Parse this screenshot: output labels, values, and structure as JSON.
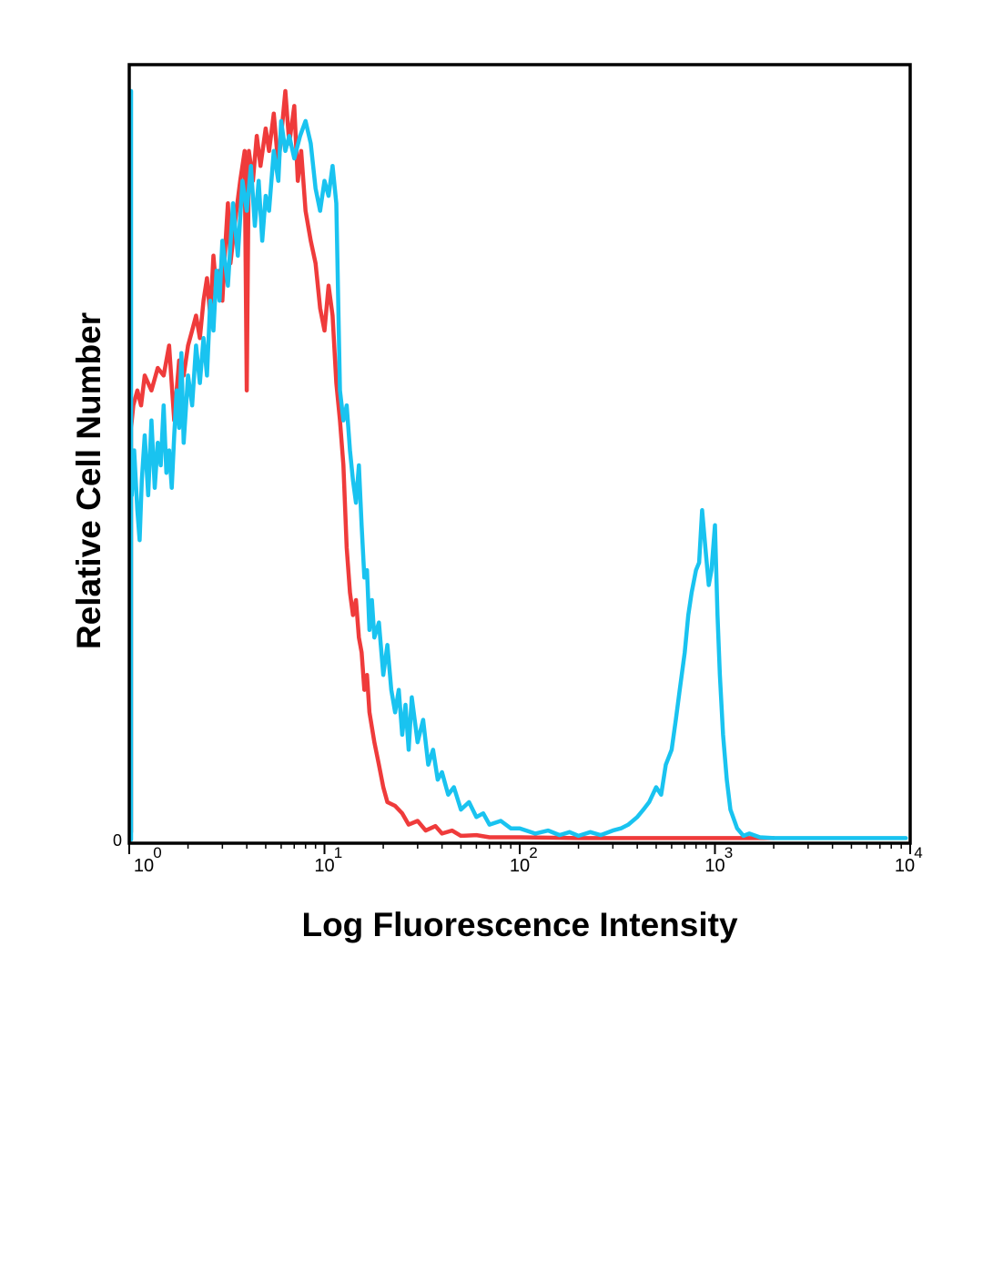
{
  "chart_data": {
    "type": "line",
    "xlabel": "Log Fluorescence Intensity",
    "ylabel": "Relative Cell Number",
    "x_scale": "log",
    "xlim": [
      1,
      10000
    ],
    "ylim": [
      0,
      1
    ],
    "grid": false,
    "legend": "none",
    "x_ticks": [
      {
        "value": 1,
        "base": "10",
        "exp": "0"
      },
      {
        "value": 10,
        "base": "10",
        "exp": "1"
      },
      {
        "value": 100,
        "base": "10",
        "exp": "2"
      },
      {
        "value": 1000,
        "base": "10",
        "exp": "3"
      },
      {
        "value": 10000,
        "base": "10",
        "exp": "4"
      }
    ],
    "y_ticks": [
      {
        "value": 0,
        "label": "0"
      }
    ],
    "series": [
      {
        "color": "#ef3b3b",
        "points": [
          [
            0.95,
            0.01
          ],
          [
            1.0,
            0.55
          ],
          [
            1.05,
            0.58
          ],
          [
            1.1,
            0.6
          ],
          [
            1.15,
            0.58
          ],
          [
            1.2,
            0.62
          ],
          [
            1.3,
            0.6
          ],
          [
            1.4,
            0.63
          ],
          [
            1.5,
            0.62
          ],
          [
            1.6,
            0.66
          ],
          [
            1.7,
            0.56
          ],
          [
            1.8,
            0.64
          ],
          [
            1.9,
            0.62
          ],
          [
            2.0,
            0.66
          ],
          [
            2.1,
            0.68
          ],
          [
            2.2,
            0.7
          ],
          [
            2.3,
            0.67
          ],
          [
            2.4,
            0.72
          ],
          [
            2.5,
            0.75
          ],
          [
            2.6,
            0.7
          ],
          [
            2.7,
            0.78
          ],
          [
            2.8,
            0.73
          ],
          [
            2.9,
            0.76
          ],
          [
            3.0,
            0.72
          ],
          [
            3.1,
            0.79
          ],
          [
            3.2,
            0.85
          ],
          [
            3.3,
            0.77
          ],
          [
            3.5,
            0.83
          ],
          [
            3.7,
            0.88
          ],
          [
            3.9,
            0.92
          ],
          [
            4.0,
            0.6
          ],
          [
            4.1,
            0.92
          ],
          [
            4.3,
            0.88
          ],
          [
            4.5,
            0.94
          ],
          [
            4.7,
            0.9
          ],
          [
            5.0,
            0.95
          ],
          [
            5.2,
            0.92
          ],
          [
            5.5,
            0.97
          ],
          [
            5.8,
            0.9
          ],
          [
            6.0,
            0.94
          ],
          [
            6.3,
            1.0
          ],
          [
            6.6,
            0.93
          ],
          [
            7.0,
            0.98
          ],
          [
            7.3,
            0.88
          ],
          [
            7.6,
            0.92
          ],
          [
            8.0,
            0.84
          ],
          [
            8.5,
            0.8
          ],
          [
            9.0,
            0.77
          ],
          [
            9.5,
            0.71
          ],
          [
            10.0,
            0.68
          ],
          [
            10.5,
            0.74
          ],
          [
            11.0,
            0.7
          ],
          [
            11.5,
            0.61
          ],
          [
            12.0,
            0.56
          ],
          [
            12.5,
            0.5
          ],
          [
            13.0,
            0.39
          ],
          [
            13.5,
            0.33
          ],
          [
            14.0,
            0.3
          ],
          [
            14.5,
            0.32
          ],
          [
            15.0,
            0.27
          ],
          [
            15.5,
            0.25
          ],
          [
            16.0,
            0.2
          ],
          [
            16.5,
            0.22
          ],
          [
            17.0,
            0.17
          ],
          [
            18.0,
            0.13
          ],
          [
            19.0,
            0.1
          ],
          [
            20.0,
            0.07
          ],
          [
            21.0,
            0.05
          ],
          [
            23.0,
            0.045
          ],
          [
            25.0,
            0.035
          ],
          [
            27.0,
            0.02
          ],
          [
            30.0,
            0.025
          ],
          [
            33.0,
            0.012
          ],
          [
            37.0,
            0.018
          ],
          [
            40.0,
            0.008
          ],
          [
            45.0,
            0.012
          ],
          [
            50.0,
            0.005
          ],
          [
            60.0,
            0.006
          ],
          [
            70.0,
            0.003
          ],
          [
            100.0,
            0.003
          ],
          [
            200.0,
            0.002
          ],
          [
            300.0,
            0.002
          ],
          [
            500.0,
            0.002
          ],
          [
            1000.0,
            0.002
          ],
          [
            1500.0,
            0.002
          ],
          [
            2000.0,
            0.002
          ]
        ]
      },
      {
        "color": "#19c3f0",
        "points": [
          [
            0.93,
            0.0
          ],
          [
            0.95,
            1.0
          ],
          [
            0.98,
            0.8
          ],
          [
            1.0,
            0.5
          ],
          [
            1.03,
            0.46
          ],
          [
            1.06,
            0.52
          ],
          [
            1.1,
            0.44
          ],
          [
            1.13,
            0.4
          ],
          [
            1.16,
            0.48
          ],
          [
            1.2,
            0.54
          ],
          [
            1.25,
            0.46
          ],
          [
            1.3,
            0.56
          ],
          [
            1.35,
            0.47
          ],
          [
            1.4,
            0.53
          ],
          [
            1.45,
            0.5
          ],
          [
            1.5,
            0.58
          ],
          [
            1.55,
            0.49
          ],
          [
            1.6,
            0.52
          ],
          [
            1.65,
            0.47
          ],
          [
            1.7,
            0.54
          ],
          [
            1.75,
            0.6
          ],
          [
            1.8,
            0.55
          ],
          [
            1.85,
            0.65
          ],
          [
            1.9,
            0.53
          ],
          [
            2.0,
            0.62
          ],
          [
            2.1,
            0.58
          ],
          [
            2.2,
            0.66
          ],
          [
            2.3,
            0.61
          ],
          [
            2.4,
            0.67
          ],
          [
            2.5,
            0.62
          ],
          [
            2.6,
            0.72
          ],
          [
            2.7,
            0.68
          ],
          [
            2.8,
            0.76
          ],
          [
            2.9,
            0.72
          ],
          [
            3.0,
            0.8
          ],
          [
            3.2,
            0.74
          ],
          [
            3.4,
            0.85
          ],
          [
            3.6,
            0.78
          ],
          [
            3.8,
            0.88
          ],
          [
            4.0,
            0.84
          ],
          [
            4.2,
            0.9
          ],
          [
            4.4,
            0.82
          ],
          [
            4.6,
            0.88
          ],
          [
            4.8,
            0.8
          ],
          [
            5.0,
            0.86
          ],
          [
            5.2,
            0.84
          ],
          [
            5.5,
            0.92
          ],
          [
            5.8,
            0.88
          ],
          [
            6.0,
            0.96
          ],
          [
            6.3,
            0.92
          ],
          [
            6.6,
            0.94
          ],
          [
            7.0,
            0.91
          ],
          [
            7.5,
            0.94
          ],
          [
            8.0,
            0.96
          ],
          [
            8.5,
            0.93
          ],
          [
            9.0,
            0.87
          ],
          [
            9.5,
            0.84
          ],
          [
            10.0,
            0.88
          ],
          [
            10.5,
            0.86
          ],
          [
            11.0,
            0.9
          ],
          [
            11.5,
            0.85
          ],
          [
            12.0,
            0.6
          ],
          [
            12.5,
            0.56
          ],
          [
            13.0,
            0.58
          ],
          [
            13.5,
            0.52
          ],
          [
            14.0,
            0.48
          ],
          [
            14.5,
            0.45
          ],
          [
            15.0,
            0.5
          ],
          [
            15.5,
            0.42
          ],
          [
            16.0,
            0.35
          ],
          [
            16.5,
            0.36
          ],
          [
            17.0,
            0.28
          ],
          [
            17.5,
            0.32
          ],
          [
            18.0,
            0.27
          ],
          [
            19.0,
            0.29
          ],
          [
            20.0,
            0.22
          ],
          [
            21.0,
            0.26
          ],
          [
            22.0,
            0.2
          ],
          [
            23.0,
            0.17
          ],
          [
            24.0,
            0.2
          ],
          [
            25.0,
            0.14
          ],
          [
            26.0,
            0.18
          ],
          [
            27.0,
            0.12
          ],
          [
            28.0,
            0.19
          ],
          [
            30.0,
            0.13
          ],
          [
            32.0,
            0.16
          ],
          [
            34.0,
            0.1
          ],
          [
            36.0,
            0.12
          ],
          [
            38.0,
            0.08
          ],
          [
            40.0,
            0.09
          ],
          [
            43.0,
            0.06
          ],
          [
            46.0,
            0.07
          ],
          [
            50.0,
            0.04
          ],
          [
            55.0,
            0.05
          ],
          [
            60.0,
            0.03
          ],
          [
            65.0,
            0.035
          ],
          [
            70.0,
            0.02
          ],
          [
            80.0,
            0.025
          ],
          [
            90.0,
            0.015
          ],
          [
            100.0,
            0.015
          ],
          [
            120.0,
            0.008
          ],
          [
            140.0,
            0.012
          ],
          [
            160.0,
            0.006
          ],
          [
            180.0,
            0.01
          ],
          [
            200.0,
            0.005
          ],
          [
            230.0,
            0.01
          ],
          [
            260.0,
            0.006
          ],
          [
            300.0,
            0.012
          ],
          [
            330.0,
            0.015
          ],
          [
            360.0,
            0.02
          ],
          [
            400.0,
            0.03
          ],
          [
            430.0,
            0.04
          ],
          [
            460.0,
            0.05
          ],
          [
            500.0,
            0.07
          ],
          [
            530.0,
            0.06
          ],
          [
            560.0,
            0.1
          ],
          [
            600.0,
            0.12
          ],
          [
            630.0,
            0.16
          ],
          [
            660.0,
            0.2
          ],
          [
            700.0,
            0.25
          ],
          [
            730.0,
            0.3
          ],
          [
            760.0,
            0.33
          ],
          [
            800.0,
            0.36
          ],
          [
            830.0,
            0.37
          ],
          [
            860.0,
            0.44
          ],
          [
            900.0,
            0.38
          ],
          [
            930.0,
            0.34
          ],
          [
            960.0,
            0.36
          ],
          [
            1000.0,
            0.42
          ],
          [
            1030.0,
            0.3
          ],
          [
            1060.0,
            0.22
          ],
          [
            1100.0,
            0.14
          ],
          [
            1150.0,
            0.08
          ],
          [
            1200.0,
            0.04
          ],
          [
            1300.0,
            0.015
          ],
          [
            1400.0,
            0.005
          ],
          [
            1500.0,
            0.008
          ],
          [
            1700.0,
            0.003
          ],
          [
            2000.0,
            0.002
          ],
          [
            3000.0,
            0.002
          ],
          [
            5000.0,
            0.002
          ],
          [
            9500.0,
            0.002
          ]
        ]
      }
    ]
  }
}
